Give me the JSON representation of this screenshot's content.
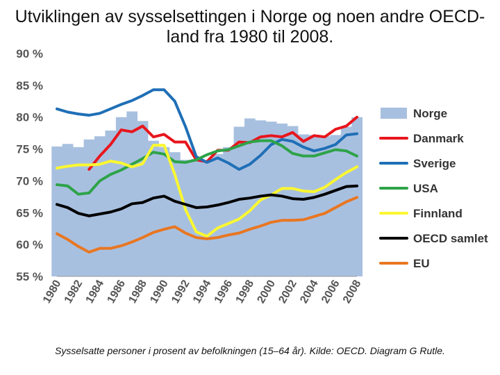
{
  "chart_data": {
    "type": "line",
    "title": "Utviklingen av sysselsettingen i Norge og noen andre OECD-land fra 1980 til 2008.",
    "caption": "Sysselsatte personer i prosent av befolkningen (15–64 år).  Kilde: OECD. Diagram G Rutle.",
    "ylim": [
      55,
      90
    ],
    "ytick_labels": [
      "90 %",
      "85 %",
      "80 %",
      "75 %",
      "70 %",
      "65 %",
      "60 %",
      "55 %"
    ],
    "x": [
      1980,
      1981,
      1982,
      1983,
      1984,
      1985,
      1986,
      1987,
      1988,
      1989,
      1990,
      1991,
      1992,
      1993,
      1994,
      1995,
      1996,
      1997,
      1998,
      1999,
      2000,
      2001,
      2002,
      2003,
      2004,
      2005,
      2006,
      2007,
      2008
    ],
    "xtick_labels": [
      "1980",
      "1982",
      "1984",
      "1986",
      "1988",
      "1990",
      "1992",
      "1994",
      "1996",
      "1998",
      "2000",
      "2002",
      "2004",
      "2006",
      "2008"
    ],
    "legend_position": "right",
    "bar_series": {
      "name": "Norge",
      "color": "#a8c0e0",
      "values": [
        75.4,
        75.8,
        75.3,
        76.5,
        77.0,
        77.9,
        80.0,
        80.9,
        79.4,
        76.3,
        75.3,
        74.5,
        73.3,
        73.4,
        73.2,
        74.2,
        75.3,
        78.5,
        79.8,
        79.5,
        79.3,
        79.0,
        78.6,
        77.3,
        77.2,
        77.0,
        77.2,
        78.5,
        80.0
      ]
    },
    "series": [
      {
        "name": "Danmark",
        "color": "#e8161d",
        "start": 1983,
        "values": [
          null,
          null,
          null,
          71.8,
          73.9,
          75.7,
          78.0,
          77.7,
          78.6,
          76.9,
          77.3,
          76.1,
          76.1,
          73.3,
          73.0,
          74.8,
          74.8,
          76.1,
          76.0,
          76.9,
          77.1,
          76.9,
          77.6,
          76.2,
          77.1,
          76.9,
          78.1,
          78.6,
          80.0
        ]
      },
      {
        "name": "Sverige",
        "color": "#1f6fb6",
        "values": [
          81.3,
          80.8,
          80.5,
          80.3,
          80.6,
          81.3,
          82.0,
          82.6,
          83.4,
          84.3,
          84.3,
          82.5,
          78.5,
          73.8,
          72.9,
          73.6,
          72.8,
          71.8,
          72.6,
          74.0,
          75.7,
          76.5,
          76.2,
          75.3,
          74.7,
          75.1,
          75.7,
          77.2,
          77.4
        ]
      },
      {
        "name": "USA",
        "color": "#2ea349",
        "values": [
          69.4,
          69.2,
          67.9,
          68.1,
          70.0,
          71.0,
          71.7,
          72.6,
          73.5,
          74.5,
          74.2,
          73.0,
          72.9,
          73.3,
          74.1,
          74.7,
          74.9,
          75.5,
          76.1,
          76.3,
          76.3,
          75.5,
          74.3,
          73.9,
          73.9,
          74.4,
          74.9,
          74.7,
          73.9
        ]
      },
      {
        "name": "Finnland",
        "color": "#fbf730",
        "values": [
          72.0,
          72.3,
          72.5,
          72.5,
          72.6,
          73.1,
          72.8,
          72.2,
          72.7,
          75.6,
          75.6,
          71.0,
          65.5,
          62.0,
          61.3,
          62.6,
          63.3,
          64.0,
          65.3,
          67.0,
          67.8,
          68.8,
          68.8,
          68.4,
          68.3,
          69.0,
          70.2,
          71.3,
          72.2
        ]
      },
      {
        "name": "OECD samlet",
        "color": "#000000",
        "values": [
          66.3,
          65.8,
          64.9,
          64.5,
          64.8,
          65.1,
          65.6,
          66.4,
          66.6,
          67.3,
          67.6,
          66.8,
          66.3,
          65.8,
          65.9,
          66.2,
          66.6,
          67.1,
          67.3,
          67.6,
          67.8,
          67.6,
          67.2,
          67.1,
          67.4,
          67.9,
          68.5,
          69.1,
          69.2
        ]
      },
      {
        "name": "EU",
        "color": "#e87722",
        "values": [
          61.7,
          60.8,
          59.7,
          58.8,
          59.4,
          59.4,
          59.8,
          60.4,
          61.1,
          61.9,
          62.4,
          62.8,
          61.8,
          61.1,
          60.9,
          61.1,
          61.5,
          61.8,
          62.4,
          62.9,
          63.5,
          63.8,
          63.8,
          63.9,
          64.4,
          64.9,
          65.8,
          66.7,
          67.4
        ]
      }
    ]
  }
}
